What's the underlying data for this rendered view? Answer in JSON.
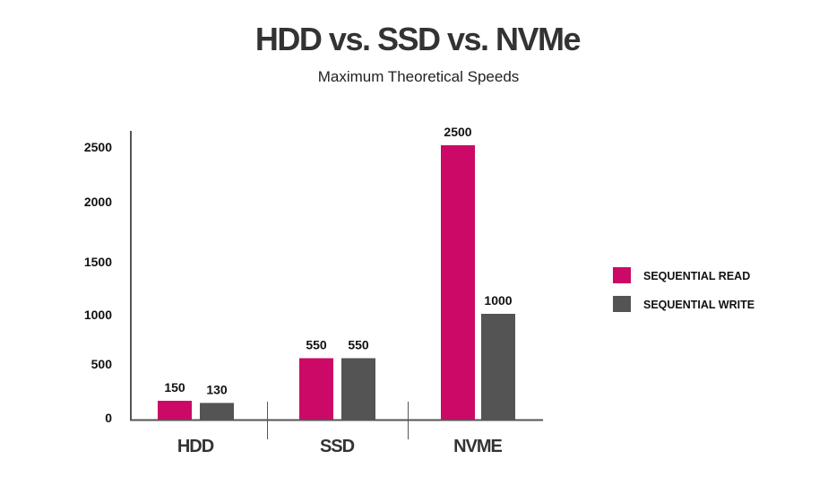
{
  "chart_data": {
    "type": "bar",
    "title": "HDD vs. SSD vs. NVMe",
    "subtitle": "Maximum Theoretical Speeds",
    "xlabel": "",
    "ylabel": "",
    "categories": [
      "HDD",
      "SSD",
      "NVME"
    ],
    "series": [
      {
        "name": "SEQUENTIAL READ",
        "color": "#cc0966",
        "values": [
          150,
          550,
          2500
        ],
        "labels": [
          "150",
          "550",
          "2500"
        ]
      },
      {
        "name": "SEQUENTIAL WRITE",
        "color": "#545454",
        "values": [
          130,
          550,
          1000
        ],
        "labels": [
          "130",
          "550",
          "1000"
        ]
      }
    ],
    "yticks": [
      0,
      500,
      1000,
      1500,
      2000,
      2500
    ],
    "ytick_labels": [
      "0",
      "500",
      "1000",
      "1500",
      "2000",
      "2500"
    ],
    "ylim": [
      0,
      2500
    ],
    "grid": false,
    "legend_position": "right",
    "axis_color": "#555555"
  }
}
